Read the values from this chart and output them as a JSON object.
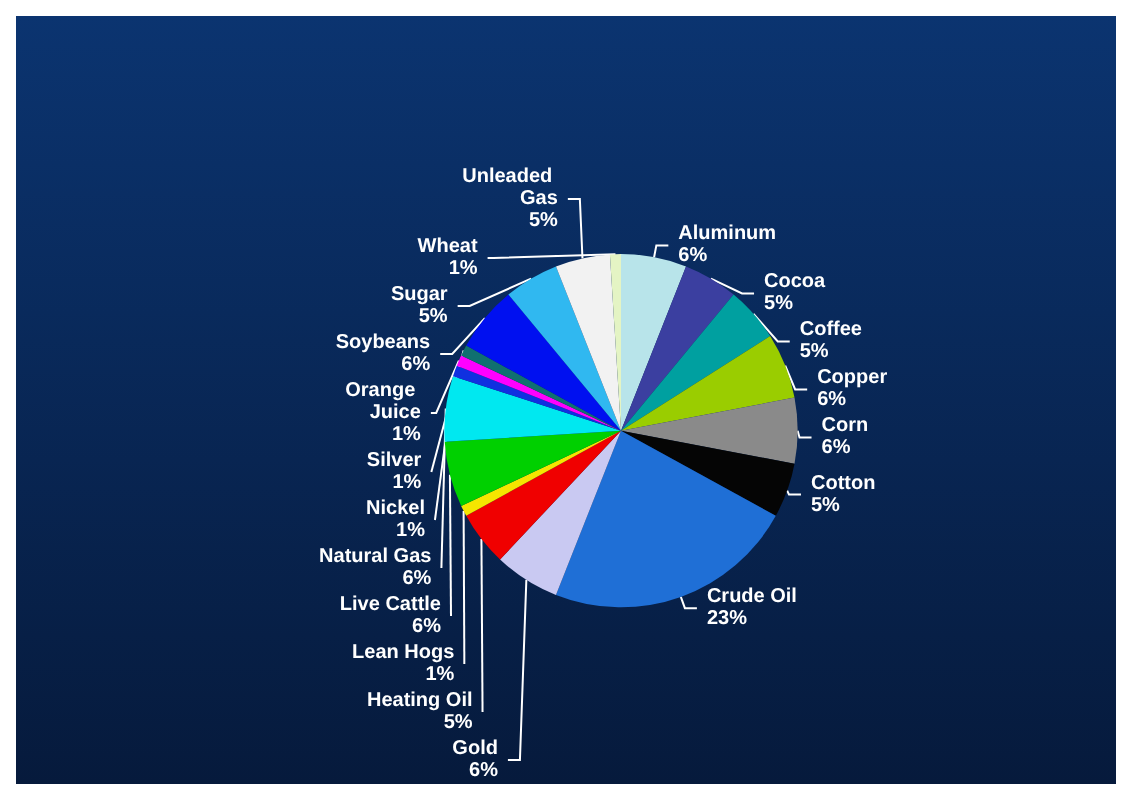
{
  "chart_data": {
    "type": "pie",
    "categories": [
      "Aluminum",
      "Cocoa",
      "Coffee",
      "Copper",
      "Corn",
      "Cotton",
      "Crude Oil",
      "Gold",
      "Heating Oil",
      "Lean Hogs",
      "Live Cattle",
      "Natural Gas",
      "Nickel",
      "Orange Juice",
      "Silver",
      "Soybeans",
      "Sugar",
      "Unleaded Gas",
      "Wheat"
    ],
    "values": [
      6,
      5,
      5,
      6,
      6,
      5,
      23,
      6,
      5,
      1,
      6,
      6,
      1,
      1,
      1,
      6,
      5,
      5,
      1
    ],
    "value_labels": [
      "6%",
      "5%",
      "5%",
      "6%",
      "6%",
      "5%",
      "23%",
      "6%",
      "5%",
      "1%",
      "6%",
      "6%",
      "1%",
      "1%",
      "1%",
      "6%",
      "5%",
      "5%",
      "1%"
    ],
    "colors": [
      "#b8e4ea",
      "#3b3fa0",
      "#00a0a0",
      "#9acd00",
      "#8a8a8a",
      "#050505",
      "#1f6fd6",
      "#c9c9f2",
      "#f00000",
      "#f5e600",
      "#00d000",
      "#00e8f0",
      "#1030e0",
      "#ff00ff",
      "#107070",
      "#0010f0",
      "#30b8f0",
      "#f2f2f2",
      "#e4f4c4"
    ]
  }
}
